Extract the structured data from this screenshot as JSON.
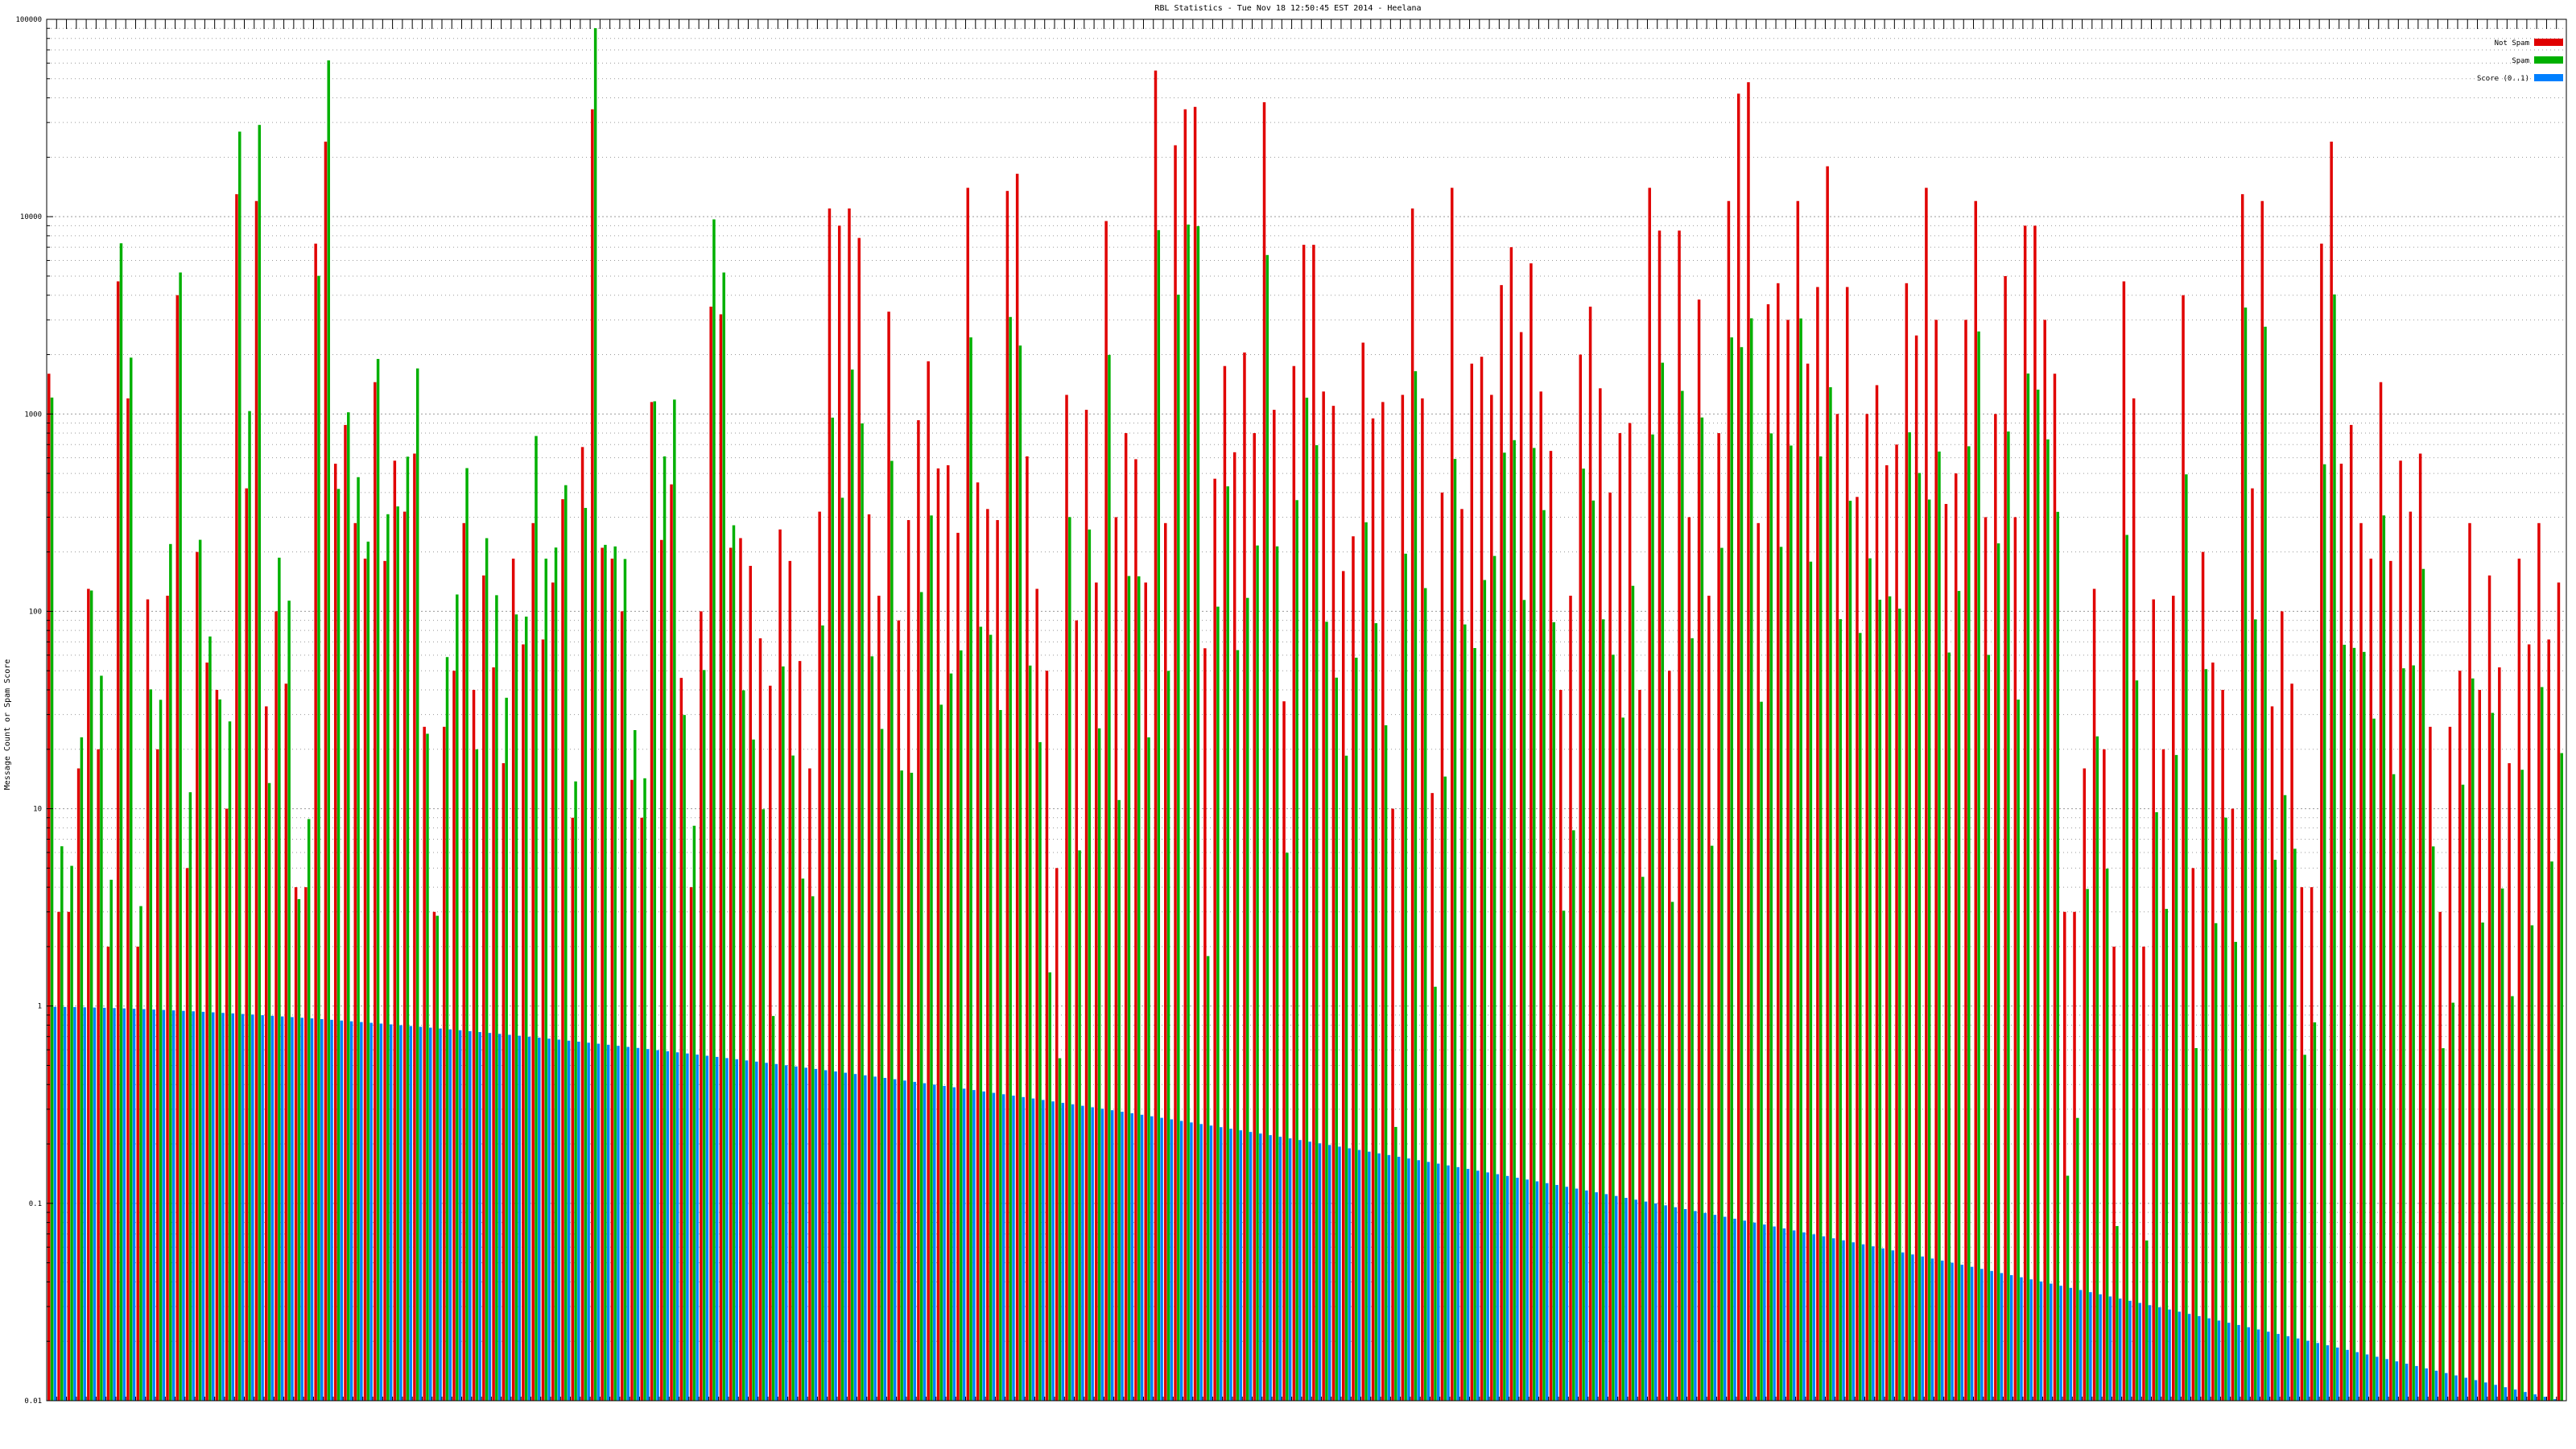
{
  "chart_data": {
    "type": "bar",
    "title": "RBL Statistics - Tue Nov 18 12:50:45 EST 2014 - Heelana",
    "ylabel": "Message Count or Spam Score",
    "xlabel": "",
    "yscale": "log",
    "ylim": [
      0.01,
      100000
    ],
    "yticks": [
      "0.01",
      "0.1",
      "1",
      "10",
      "100",
      "1000",
      "10000",
      "100000"
    ],
    "grid": true,
    "legend_position": "top-right",
    "colors": {
      "not_spam": "#e00000",
      "spam": "#00b000",
      "score": "#0080ff"
    },
    "series": [
      {
        "name": "Not Spam",
        "key": "not_spam"
      },
      {
        "name": "Spam",
        "key": "spam"
      },
      {
        "name": "Score (0..1)",
        "key": "score"
      }
    ],
    "categories": [],
    "values": {
      "not_spam": [
        1600,
        3,
        3,
        16,
        130,
        20,
        2,
        4700,
        1200,
        2,
        115,
        20,
        120,
        4000,
        5,
        200,
        55,
        40,
        10,
        13000,
        420,
        12000,
        33,
        100,
        43,
        4,
        4,
        7300,
        24000,
        560,
        880,
        280,
        185,
        1450,
        180,
        580,
        320,
        630,
        26,
        3,
        26,
        50,
        280,
        40,
        152,
        52,
        17,
        185,
        68,
        280,
        72,
        140,
        370,
        9,
        680,
        35000,
        210,
        185,
        100,
        14,
        9,
        1150,
        230,
        440,
        46,
        4,
        100,
        3500,
        3200,
        210,
        235,
        170,
        73,
        42,
        260,
        180,
        56,
        16,
        320,
        11000,
        9000,
        11000,
        7800,
        310,
        120,
        3300,
        90,
        290,
        930,
        1850,
        530,
        550,
        250,
        14000,
        450,
        330,
        290,
        13500,
        16500,
        610,
        130,
        50,
        5,
        1250,
        90,
        1050,
        140,
        9500,
        300,
        800,
        590,
        140,
        55000,
        280,
        23000,
        35000,
        36000,
        65,
        470,
        1750,
        640,
        2050,
        800,
        38000,
        1050,
        35,
        1750,
        7200,
        7200,
        1300,
        1100,
        160,
        240,
        2300,
        950,
        1150,
        10,
        1250,
        11000,
        1200,
        12,
        400,
        14000,
        330,
        1800,
        1950,
        1250,
        4500,
        7000,
        2600,
        5800,
        1300,
        650,
        40,
        120,
        2000,
        3500,
        1350,
        400,
        800,
        900,
        40,
        14000,
        8500,
        50,
        8500,
        300,
        3800,
        120,
        800,
        12000,
        42000,
        48000,
        280,
        3600,
        4600,
        3000,
        12000,
        1800,
        4400,
        18000,
        1000,
        4400,
        380,
        1000,
        1400,
        550,
        700,
        4600,
        2500,
        14000,
        3000,
        350,
        500,
        3000,
        12000,
        300,
        1000,
        5000,
        300,
        9000,
        9000,
        3000
      ]
    },
    "score_range": [
      1.0,
      0.01
    ],
    "bar_count": 255,
    "x_tick_labels_present": true,
    "x_tick_labels_note": ""
  }
}
